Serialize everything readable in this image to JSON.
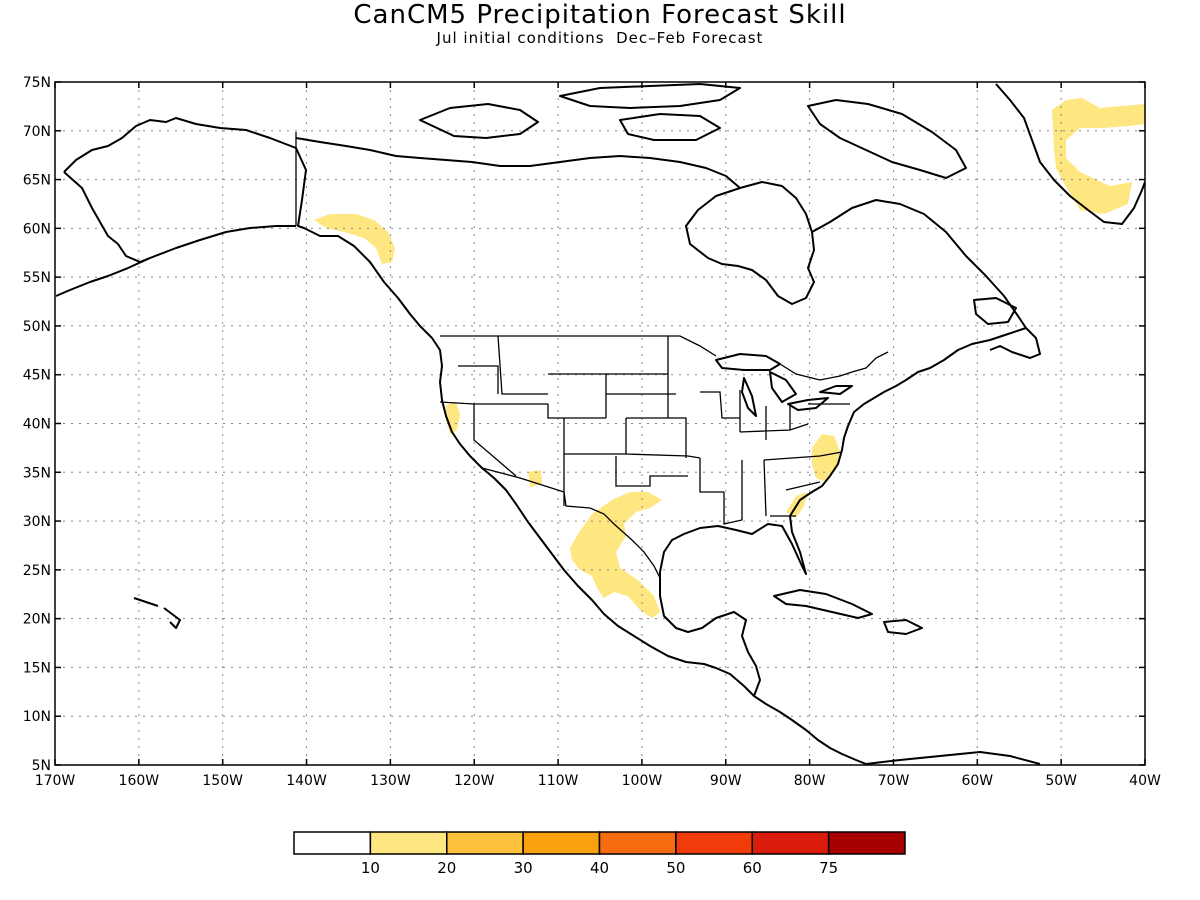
{
  "title": "CanCM5 Precipitation Forecast Skill",
  "subtitle": "Jul initial conditions  Dec–Feb Forecast",
  "map": {
    "lon_range": [
      -170,
      -40
    ],
    "lat_range": [
      5,
      75
    ],
    "lat_ticks": [
      "5N",
      "10N",
      "15N",
      "20N",
      "25N",
      "30N",
      "35N",
      "40N",
      "45N",
      "50N",
      "55N",
      "60N",
      "65N",
      "70N",
      "75N"
    ],
    "lon_ticks": [
      "170W",
      "160W",
      "150W",
      "140W",
      "130W",
      "120W",
      "110W",
      "100W",
      "90W",
      "80W",
      "70W",
      "60W",
      "50W",
      "40W"
    ],
    "grid": "dotted",
    "shaded_regions": [
      {
        "name": "southern-alaska",
        "class": "10-20"
      },
      {
        "name": "greenland-east",
        "class": "10-20"
      },
      {
        "name": "greenland-south",
        "class": "10-20"
      },
      {
        "name": "california",
        "class": "10-20"
      },
      {
        "name": "arizona",
        "class": "10-20"
      },
      {
        "name": "texas-west",
        "class": "10-20"
      },
      {
        "name": "northern-mexico",
        "class": "10-20"
      },
      {
        "name": "virginia-carolina",
        "class": "10-20"
      },
      {
        "name": "georgia-coast",
        "class": "10-20"
      }
    ]
  },
  "colorbar": {
    "labels": [
      "10",
      "20",
      "30",
      "40",
      "50",
      "60",
      "75"
    ],
    "colors": [
      "#ffffff",
      "#fee680",
      "#fbc13c",
      "#f9a10e",
      "#f56b0d",
      "#f03b0a",
      "#d91c0c",
      "#a80000"
    ]
  }
}
